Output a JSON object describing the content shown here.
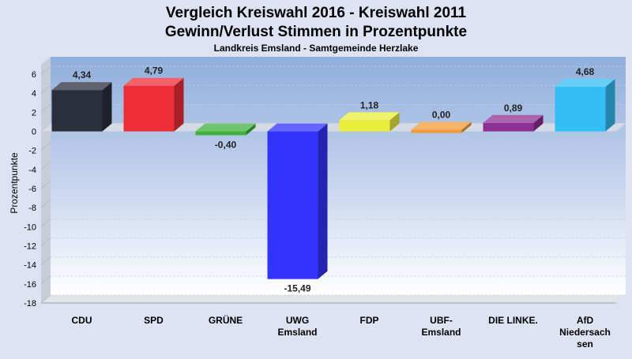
{
  "chart_data": {
    "type": "bar",
    "title_line1": "Vergleich Kreiswahl 2016 - Kreiswahl 2011",
    "title_line2": "Gewinn/Verlust Stimmen in Prozentpunkte",
    "subtitle": "Landkreis Emsland - Samtgemeinde Herzlake",
    "ylabel": "Prozentpunkte",
    "xlabel": "",
    "ylim": [
      -18,
      7
    ],
    "yticks": [
      6,
      4,
      2,
      0,
      -2,
      -4,
      -6,
      -8,
      -10,
      -12,
      -14,
      -16,
      -18
    ],
    "grid": true,
    "categories": [
      [
        "CDU"
      ],
      [
        "SPD"
      ],
      [
        "GRÜNE"
      ],
      [
        "UWG",
        "Emsland"
      ],
      [
        "FDP"
      ],
      [
        "UBF-",
        "Emsland"
      ],
      [
        "DIE LINKE."
      ],
      [
        "AfD",
        "Niedersach",
        "sen"
      ]
    ],
    "values": [
      4.34,
      4.79,
      -0.4,
      -15.49,
      1.18,
      0.0,
      0.89,
      4.68
    ],
    "value_labels": [
      "4,34",
      "4,79",
      "-0,40",
      "-15,49",
      "1,18",
      "0,00",
      "0,89",
      "4,68"
    ],
    "colors": [
      "#2b2f3b",
      "#ee2e37",
      "#3fb33a",
      "#3333ff",
      "#eaed3a",
      "#f39a3a",
      "#8f2f95",
      "#33bff5"
    ]
  }
}
